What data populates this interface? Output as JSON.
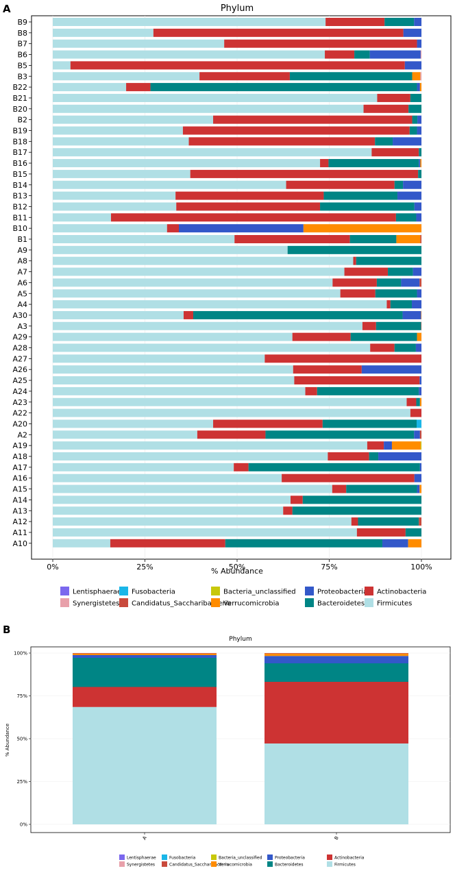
{
  "colors": {
    "Lentisphaerae": "#7b68ee",
    "Synergistetes": "#e8a0aa",
    "Fusobacteria": "#1ab6e8",
    "Candidatus_Saccharibacteria": "#c94a3c",
    "Bacteria_unclassified": "#c8c80a",
    "Verrucomicrobia": "#ff8c00",
    "Proteobacteria": "#3358c9",
    "Bacteroidetes": "#008585",
    "Actinobacteria": "#cd3333",
    "Firmicutes": "#b0dfe5"
  },
  "legend_items": [
    {
      "name": "Lentisphaerae",
      "label": "Lentisphaerae"
    },
    {
      "name": "Fusobacteria",
      "label": "Fusobacteria"
    },
    {
      "name": "Bacteria_unclassified",
      "label": "Bacteria_unclassified"
    },
    {
      "name": "Proteobacteria",
      "label": "Proteobacteria"
    },
    {
      "name": "Actinobacteria",
      "label": "Actinobacteria"
    },
    {
      "name": "Synergistetes",
      "label": "Synergistetes"
    },
    {
      "name": "Candidatus_Saccharibacteria",
      "label": "Candidatus_Saccharibacteria"
    },
    {
      "name": "Verrucomicrobia",
      "label": "Verrucomicrobia"
    },
    {
      "name": "Bacteroidetes",
      "label": "Bacteroidetes"
    },
    {
      "name": "Firmicutes",
      "label": "Firmicutes"
    }
  ],
  "chart_data": [
    {
      "panel_label": "A",
      "type": "bar",
      "orientation": "horizontal",
      "stacked": true,
      "title": "Phylum",
      "xlabel": "% Abundance",
      "ylabel": "",
      "xlim": [
        0,
        100
      ],
      "xticks": [
        "0%",
        "25%",
        "50%",
        "75%",
        "100%"
      ],
      "segment_order": [
        "Firmicutes",
        "Actinobacteria",
        "Bacteroidetes",
        "Proteobacteria",
        "Verrucomicrobia",
        "Bacteria_unclassified",
        "Candidatus_Saccharibacteria",
        "Fusobacteria",
        "Synergistetes",
        "Lentisphaerae"
      ],
      "samples": [
        {
          "name": "B9",
          "values": [
            74,
            16,
            8,
            2,
            0,
            0,
            0,
            0,
            0,
            0
          ]
        },
        {
          "name": "B8",
          "values": [
            27.3,
            67.8,
            0,
            4.9,
            0,
            0,
            0,
            0,
            0,
            0
          ]
        },
        {
          "name": "B7",
          "values": [
            46.5,
            52.3,
            0,
            1.2,
            0,
            0,
            0,
            0,
            0,
            0
          ]
        },
        {
          "name": "B6",
          "values": [
            73.8,
            8,
            4.2,
            13.8,
            0,
            0,
            0,
            0,
            0.2,
            0
          ]
        },
        {
          "name": "B5",
          "values": [
            4.8,
            90.7,
            0,
            4.5,
            0,
            0,
            0,
            0,
            0,
            0
          ]
        },
        {
          "name": "B3",
          "values": [
            39.8,
            24.5,
            33.2,
            0,
            2.2,
            0,
            0,
            0,
            0.3,
            0
          ]
        },
        {
          "name": "B22",
          "values": [
            19.9,
            6.6,
            72.3,
            0.8,
            0.4,
            0,
            0,
            0,
            0,
            0
          ]
        },
        {
          "name": "B21",
          "values": [
            88,
            9,
            3,
            0,
            0,
            0,
            0,
            0,
            0,
            0
          ]
        },
        {
          "name": "B20",
          "values": [
            84.3,
            12.2,
            3.5,
            0,
            0,
            0,
            0,
            0,
            0,
            0
          ]
        },
        {
          "name": "B2",
          "values": [
            43.5,
            54,
            1.4,
            1.1,
            0,
            0,
            0,
            0,
            0,
            0
          ]
        },
        {
          "name": "B19",
          "values": [
            35.3,
            61.5,
            2,
            1.2,
            0,
            0,
            0,
            0,
            0,
            0
          ]
        },
        {
          "name": "B18",
          "values": [
            36.9,
            50.5,
            4.8,
            7.8,
            0,
            0,
            0,
            0,
            0,
            0
          ]
        },
        {
          "name": "B17",
          "values": [
            86.5,
            12.8,
            0.7,
            0,
            0,
            0,
            0,
            0,
            0,
            0
          ]
        },
        {
          "name": "B16",
          "values": [
            72.5,
            2.3,
            24.5,
            0.4,
            0.3,
            0,
            0,
            0,
            0,
            0
          ]
        },
        {
          "name": "B15",
          "values": [
            37.3,
            61.8,
            0.9,
            0,
            0,
            0,
            0,
            0,
            0,
            0
          ]
        },
        {
          "name": "B14",
          "values": [
            63.3,
            29.4,
            2.3,
            5,
            0,
            0,
            0,
            0,
            0,
            0
          ]
        },
        {
          "name": "B13",
          "values": [
            33.3,
            40.2,
            20,
            6.5,
            0,
            0,
            0,
            0,
            0,
            0
          ]
        },
        {
          "name": "B12",
          "values": [
            33.5,
            39,
            25.6,
            1.9,
            0,
            0,
            0,
            0,
            0,
            0
          ]
        },
        {
          "name": "B11",
          "values": [
            15.8,
            77.3,
            5.5,
            1.4,
            0,
            0,
            0,
            0,
            0,
            0
          ]
        },
        {
          "name": "B10",
          "values": [
            31,
            3.2,
            0,
            33.8,
            32,
            0,
            0,
            0,
            0,
            0
          ]
        },
        {
          "name": "B1",
          "values": [
            49.3,
            31.3,
            12.6,
            0,
            6.5,
            0,
            0.3,
            0,
            0,
            0
          ]
        },
        {
          "name": "A9",
          "values": [
            63.7,
            0,
            36.3,
            0,
            0,
            0,
            0,
            0,
            0,
            0
          ]
        },
        {
          "name": "A8",
          "values": [
            81.5,
            0.8,
            17.7,
            0,
            0,
            0,
            0,
            0,
            0,
            0
          ]
        },
        {
          "name": "A7",
          "values": [
            79.1,
            11.8,
            6.8,
            2.3,
            0,
            0,
            0,
            0,
            0,
            0
          ]
        },
        {
          "name": "A6",
          "values": [
            75.9,
            12,
            6.6,
            5,
            0,
            0,
            0.5,
            0,
            0,
            0
          ]
        },
        {
          "name": "A5",
          "values": [
            78,
            9.5,
            11.3,
            1.2,
            0,
            0,
            0,
            0,
            0,
            0
          ]
        },
        {
          "name": "A4",
          "values": [
            90.6,
            1,
            5.8,
            2.6,
            0,
            0,
            0,
            0,
            0,
            0
          ]
        },
        {
          "name": "A30",
          "values": [
            35.5,
            2.6,
            56.8,
            5,
            0.1,
            0,
            0,
            0,
            0,
            0
          ]
        },
        {
          "name": "A3",
          "values": [
            84,
            3.7,
            12.2,
            0,
            0,
            0,
            0.1,
            0,
            0,
            0
          ]
        },
        {
          "name": "A29",
          "values": [
            65,
            15.8,
            18,
            0,
            1.2,
            0,
            0,
            0,
            0,
            0
          ]
        },
        {
          "name": "A28",
          "values": [
            86.1,
            6.6,
            5.8,
            1.5,
            0,
            0,
            0,
            0,
            0,
            0
          ]
        },
        {
          "name": "A27",
          "values": [
            57.5,
            42.5,
            0,
            0,
            0,
            0,
            0,
            0,
            0,
            0
          ]
        },
        {
          "name": "A26",
          "values": [
            65.2,
            18.6,
            0,
            16.2,
            0,
            0,
            0,
            0,
            0,
            0
          ]
        },
        {
          "name": "A25",
          "values": [
            65.5,
            34,
            0,
            0.5,
            0,
            0,
            0,
            0,
            0,
            0
          ]
        },
        {
          "name": "A24",
          "values": [
            68.5,
            3.2,
            27.6,
            0.7,
            0,
            0,
            0,
            0,
            0,
            0
          ]
        },
        {
          "name": "A23",
          "values": [
            96,
            2.6,
            1,
            0,
            0.4,
            0,
            0,
            0,
            0,
            0
          ]
        },
        {
          "name": "A22",
          "values": [
            97,
            3,
            0,
            0,
            0,
            0,
            0,
            0,
            0,
            0
          ]
        },
        {
          "name": "A20",
          "values": [
            43.5,
            29.7,
            25.5,
            0,
            0,
            0,
            0,
            1.3,
            0,
            0
          ]
        },
        {
          "name": "A2",
          "values": [
            39.2,
            18.5,
            40.3,
            1.6,
            0,
            0,
            0.4,
            0,
            0,
            0
          ]
        },
        {
          "name": "A19",
          "values": [
            85.3,
            4.5,
            0,
            2.2,
            7.8,
            0.2,
            0,
            0,
            0,
            0
          ]
        },
        {
          "name": "A18",
          "values": [
            74.6,
            11.2,
            2.5,
            11.7,
            0,
            0,
            0,
            0,
            0,
            0
          ]
        },
        {
          "name": "A17",
          "values": [
            49.1,
            4,
            46.5,
            0.4,
            0,
            0,
            0,
            0,
            0,
            0
          ]
        },
        {
          "name": "A16",
          "values": [
            62.1,
            36,
            0,
            1.9,
            0,
            0,
            0,
            0,
            0,
            0
          ]
        },
        {
          "name": "A15",
          "values": [
            75.8,
            3.8,
            19.2,
            0.7,
            0.5,
            0,
            0,
            0,
            0,
            0
          ]
        },
        {
          "name": "A14",
          "values": [
            64.5,
            3.3,
            32.2,
            0,
            0,
            0,
            0,
            0,
            0,
            0
          ]
        },
        {
          "name": "A13",
          "values": [
            62.5,
            2.5,
            35,
            0,
            0,
            0,
            0,
            0,
            0,
            0
          ]
        },
        {
          "name": "A12",
          "values": [
            81,
            1.8,
            16.5,
            0,
            0,
            0,
            0.7,
            0,
            0,
            0
          ]
        },
        {
          "name": "A11",
          "values": [
            82.5,
            13.2,
            4.3,
            0,
            0,
            0,
            0,
            0,
            0,
            0
          ]
        },
        {
          "name": "A10",
          "values": [
            15.6,
            31.2,
            42.6,
            7,
            3.6,
            0,
            0,
            0,
            0,
            0
          ]
        }
      ]
    },
    {
      "panel_label": "B",
      "type": "bar",
      "orientation": "vertical",
      "stacked": true,
      "title": "Phylum",
      "xlabel": "",
      "ylabel": "% Abundance",
      "ylim": [
        0,
        100
      ],
      "yticks": [
        "0%",
        "25%",
        "50%",
        "75%",
        "100%"
      ],
      "segment_order": [
        "Firmicutes",
        "Actinobacteria",
        "Bacteroidetes",
        "Proteobacteria",
        "Verrucomicrobia",
        "Bacteria_unclassified",
        "Candidatus_Saccharibacteria",
        "Fusobacteria",
        "Synergistetes",
        "Lentisphaerae"
      ],
      "samples": [
        {
          "name": "A",
          "values": [
            68.5,
            11.7,
            17.0,
            1.6,
            0.9,
            0,
            0.3,
            0,
            0,
            0
          ]
        },
        {
          "name": "B",
          "values": [
            47.2,
            36.0,
            10.8,
            4.3,
            1.4,
            0,
            0.3,
            0,
            0,
            0
          ]
        }
      ]
    }
  ]
}
